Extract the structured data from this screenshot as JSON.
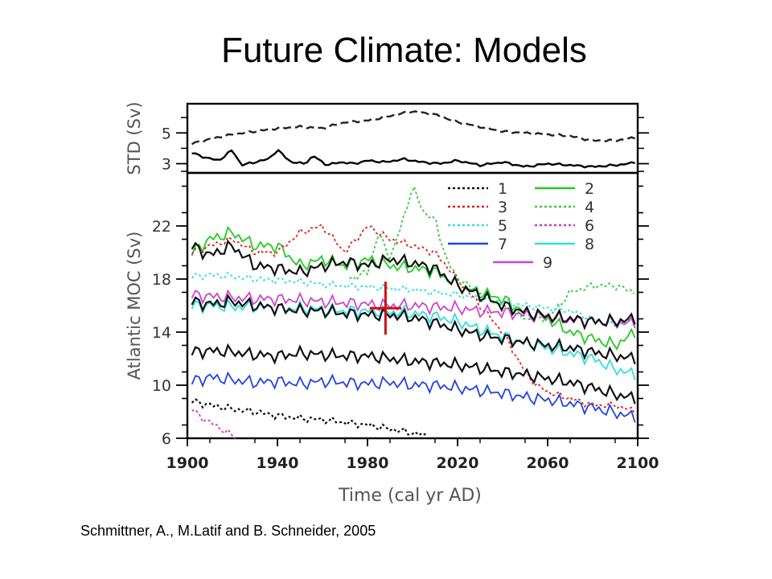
{
  "slide": {
    "title": "Future Climate: Models",
    "citation": "Schmittner, A., M.Latif and B. Schneider, 2005"
  },
  "chart_data": [
    {
      "panel": "top",
      "type": "line",
      "ylabel": "STD (Sv)",
      "yticks": [
        3,
        5
      ],
      "ylim": [
        2.4,
        6.9
      ],
      "xlim": [
        1900,
        2100
      ],
      "series": [
        {
          "style": "dashed",
          "color": "#222222",
          "x": [
            1902,
            1910,
            1920,
            1930,
            1940,
            1950,
            1960,
            1970,
            1980,
            1990,
            2000,
            2010,
            2020,
            2030,
            2040,
            2050,
            2060,
            2070,
            2080,
            2090,
            2099
          ],
          "y": [
            4.3,
            4.6,
            4.9,
            5.1,
            5.3,
            5.4,
            5.3,
            5.7,
            5.8,
            6.1,
            6.4,
            6.2,
            5.7,
            5.4,
            5.1,
            5.0,
            4.9,
            4.8,
            4.5,
            4.5,
            4.7
          ]
        },
        {
          "style": "solid",
          "color": "#000000",
          "x": [
            1902,
            1908,
            1914,
            1920,
            1924,
            1930,
            1936,
            1940,
            1946,
            1952,
            1956,
            1962,
            1968,
            1974,
            1980,
            1988,
            1996,
            2004,
            2012,
            2020,
            2030,
            2040,
            2050,
            2060,
            2070,
            2080,
            2090,
            2096,
            2099
          ],
          "y": [
            3.7,
            3.4,
            3.2,
            3.9,
            2.9,
            3.1,
            3.3,
            3.9,
            3.1,
            3.0,
            3.5,
            2.9,
            3.1,
            3.0,
            3.2,
            3.1,
            3.3,
            3.1,
            3.0,
            3.2,
            2.9,
            3.1,
            2.8,
            3.0,
            2.9,
            2.8,
            2.9,
            3.0,
            3.1
          ]
        }
      ]
    },
    {
      "panel": "bottom",
      "type": "line",
      "xlabel": "Time (cal yr AD)",
      "ylabel": "Atlantic MOC (Sv)",
      "xlim": [
        1900,
        2100
      ],
      "ylim": [
        6,
        26
      ],
      "xticks": [
        1900,
        1940,
        1980,
        2020,
        2060,
        2100
      ],
      "yticks": [
        6,
        10,
        14,
        18,
        22
      ],
      "observation": {
        "x": 1988,
        "y": 15.8,
        "xerr": 7,
        "yerr": 2,
        "color": "#cc1111"
      },
      "series": [
        {
          "name": "1",
          "color": "#111111",
          "style": "dotted",
          "x": [
            1902,
            1910,
            1920,
            1930,
            1940,
            1950,
            1960,
            1970,
            1980,
            1990,
            2000,
            2006
          ],
          "y": [
            8.8,
            8.5,
            8.2,
            8.0,
            7.7,
            7.5,
            7.4,
            7.2,
            7.0,
            6.7,
            6.4,
            6.2
          ]
        },
        {
          "name": "2",
          "color": "#22cc22",
          "style": "solid",
          "x": [
            1902,
            1910,
            1920,
            1930,
            1940,
            1950,
            1960,
            1970,
            1980,
            1990,
            2000,
            2010,
            2020,
            2030,
            2040,
            2050,
            2060,
            2070,
            2080,
            2090,
            2099
          ],
          "y": [
            20,
            21,
            21.5,
            20.5,
            20.5,
            19,
            19.5,
            19,
            19.5,
            19,
            18.8,
            18.6,
            17.5,
            17,
            16.5,
            15.5,
            15,
            14,
            13.5,
            13,
            14
          ]
        },
        {
          "name": "3",
          "color": "#dd2222",
          "style": "dotted",
          "x": [
            1902,
            1910,
            1920,
            1930,
            1940,
            1950,
            1960,
            1970,
            1980,
            1990,
            2000,
            2010,
            2020,
            2030,
            2040,
            2045,
            2050,
            2055,
            2060,
            2070,
            2080,
            2090,
            2099
          ],
          "y": [
            20,
            20.5,
            21,
            20,
            20,
            21.5,
            22,
            20,
            22,
            21,
            20.5,
            20,
            18,
            16,
            14,
            12.5,
            11,
            10,
            9.5,
            9,
            8.5,
            8.5,
            8
          ]
        },
        {
          "name": "4",
          "color": "#33cc33",
          "style": "dotted",
          "x": [
            1972,
            1980,
            1985,
            1990,
            1995,
            2000,
            2005,
            2010,
            2015,
            2020,
            2030,
            2040,
            2050,
            2060,
            2070,
            2080,
            2090,
            2099
          ],
          "y": [
            18,
            18.5,
            21.5,
            19.5,
            22,
            25,
            23,
            22.5,
            19.5,
            18,
            17,
            16,
            15,
            15,
            17,
            17.5,
            17.5,
            17
          ]
        },
        {
          "name": "5",
          "color": "#33dddd",
          "style": "dotted",
          "x": [
            1902,
            1910,
            1920,
            1930,
            1940,
            1950,
            1960,
            1970,
            1980,
            1990,
            2000,
            2010,
            2020,
            2030,
            2040,
            2050,
            2060,
            2070,
            2080,
            2090,
            2099
          ],
          "y": [
            18.2,
            18.3,
            18.2,
            18,
            17.9,
            17.8,
            17.6,
            17.5,
            17.4,
            17.3,
            17.2,
            17,
            16.8,
            16.5,
            16.3,
            16,
            15.8,
            15.6,
            15,
            14.5,
            14.8
          ]
        },
        {
          "name": "6",
          "color": "#cc33cc",
          "style": "dotted",
          "x": [
            1902,
            1906,
            1910,
            1914,
            1918,
            1922
          ],
          "y": [
            8.2,
            7.6,
            7.2,
            6.8,
            6.4,
            6.0
          ]
        },
        {
          "name": "7",
          "color": "#2244dd",
          "style": "solid",
          "x": [
            1902,
            1910,
            1920,
            1930,
            1940,
            1950,
            1960,
            1970,
            1980,
            1990,
            2000,
            2010,
            2020,
            2030,
            2040,
            2050,
            2060,
            2070,
            2080,
            2090,
            2099
          ],
          "y": [
            10.3,
            10.6,
            10.4,
            10.2,
            10.3,
            10.1,
            10.3,
            10.2,
            10.1,
            10.2,
            10,
            10,
            9.8,
            9.6,
            9.4,
            9.1,
            8.9,
            8.6,
            8.3,
            7.9,
            7.6
          ]
        },
        {
          "name": "8",
          "color": "#33dddd",
          "style": "solid",
          "x": [
            1902,
            1910,
            1920,
            1930,
            1940,
            1950,
            1960,
            1970,
            1980,
            1990,
            2000,
            2010,
            2020,
            2030,
            2040,
            2050,
            2060,
            2070,
            2080,
            2090,
            2099
          ],
          "y": [
            16,
            16,
            15.9,
            15.9,
            15.8,
            15.8,
            15.7,
            15.6,
            15.6,
            15.5,
            15.4,
            15.2,
            14.8,
            14.2,
            13.7,
            13.2,
            12.8,
            12.4,
            12,
            11.2,
            10.8
          ]
        },
        {
          "name": "9",
          "color": "#cc44cc",
          "style": "solid",
          "x": [
            1902,
            1910,
            1920,
            1930,
            1940,
            1950,
            1960,
            1970,
            1980,
            1990,
            2000,
            2010,
            2020,
            2030,
            2040,
            2050,
            2060,
            2070,
            2080,
            2090,
            2099
          ],
          "y": [
            16.8,
            16.7,
            16.6,
            16.5,
            16.5,
            16.4,
            16.3,
            16.2,
            16.1,
            16,
            16,
            15.9,
            15.8,
            15.6,
            15.5,
            15.3,
            15.1,
            14.9,
            14.8,
            14.7,
            14.7
          ]
        },
        {
          "color": "#111111",
          "style": "solid",
          "x": [
            1902,
            1910,
            1920,
            1930,
            1940,
            1950,
            1960,
            1970,
            1980,
            1990,
            2000,
            2010,
            2020,
            2030,
            2040,
            2050,
            2060,
            2070,
            2080,
            2090,
            2099
          ],
          "y": [
            20.5,
            19.8,
            20.5,
            19,
            18.8,
            18.5,
            19,
            19.3,
            19,
            19.5,
            19.2,
            18.8,
            17.5,
            16.8,
            16,
            15.5,
            15.2,
            15,
            14.8,
            14.8,
            15
          ]
        },
        {
          "color": "#111111",
          "style": "solid",
          "x": [
            1902,
            1910,
            1920,
            1930,
            1940,
            1950,
            1960,
            1970,
            1980,
            1990,
            2000,
            2010,
            2020,
            2030,
            2040,
            2050,
            2060,
            2070,
            2080,
            2090,
            2099
          ],
          "y": [
            16.3,
            16.1,
            16.3,
            16,
            15.8,
            15.6,
            15.6,
            15.4,
            15.3,
            15.3,
            15.1,
            14.7,
            14.2,
            13.8,
            13.5,
            13.2,
            13,
            12.8,
            12.5,
            12.2,
            12
          ]
        },
        {
          "color": "#111111",
          "style": "solid",
          "x": [
            1902,
            1910,
            1920,
            1930,
            1940,
            1950,
            1960,
            1970,
            1980,
            1990,
            2000,
            2010,
            2020,
            2030,
            2040,
            2050,
            2060,
            2070,
            2080,
            2090,
            2099
          ],
          "y": [
            12.5,
            12.6,
            12.5,
            12.3,
            12.2,
            12.4,
            12.3,
            12.2,
            12.2,
            12,
            11.8,
            11.7,
            11.5,
            11.3,
            11,
            10.8,
            10.5,
            10.2,
            9.8,
            9.3,
            9.0
          ]
        }
      ]
    }
  ]
}
